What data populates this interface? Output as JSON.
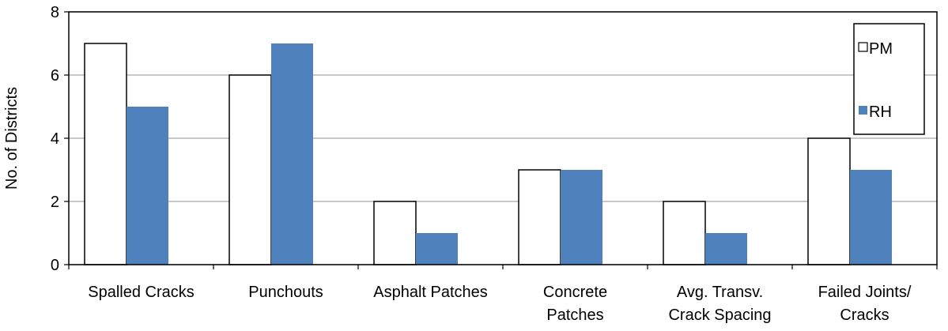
{
  "chart_data": {
    "type": "bar",
    "title": "",
    "xlabel": "",
    "ylabel": "No. of Districts",
    "ylim": [
      0,
      8
    ],
    "yticks": [
      "0",
      "2",
      "4",
      "6",
      "8"
    ],
    "grid": true,
    "legend_position": "top-right",
    "categories": [
      [
        "Spalled Cracks"
      ],
      [
        "Punchouts"
      ],
      [
        "Asphalt Patches"
      ],
      [
        "Concrete",
        "Patches"
      ],
      [
        "Avg. Transv.",
        "Crack Spacing"
      ],
      [
        "Failed Joints/",
        "Cracks"
      ]
    ],
    "series": [
      {
        "name": "PM",
        "values": [
          7,
          6,
          2,
          3,
          2,
          4
        ],
        "color": "#ffffff"
      },
      {
        "name": "RH",
        "values": [
          5,
          7,
          1,
          3,
          1,
          3
        ],
        "color": "#4f81bd"
      }
    ]
  }
}
